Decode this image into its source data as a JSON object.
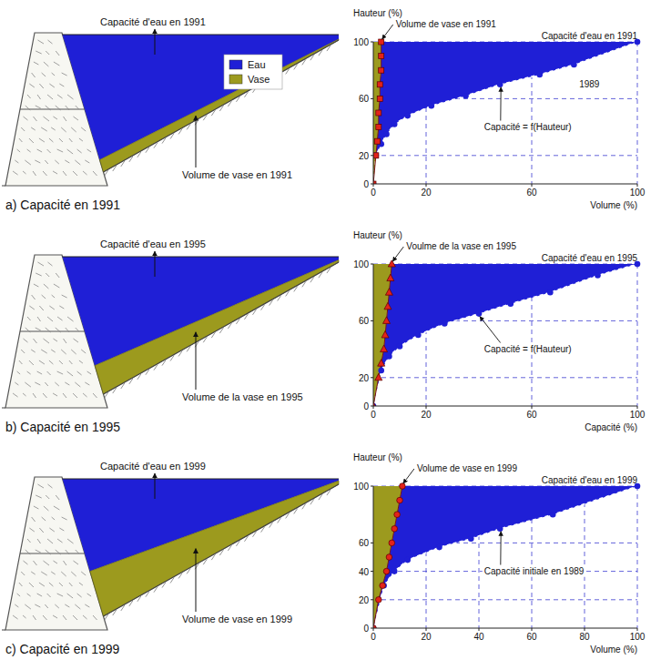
{
  "diagrams": [
    {
      "caption": "a) Capacité en 1991",
      "water_label": "Capacité d'eau en 1991",
      "silt_label": "Volume de vase en 1991",
      "legend": [
        {
          "label": "Eau",
          "color": "#1f1fd6"
        },
        {
          "label": "Vase",
          "color": "#9c9a1e"
        }
      ]
    },
    {
      "caption": "b) Capacité en 1995",
      "water_label": "Capacité d'eau en 1995",
      "silt_label": "Volume de la vase en 1995"
    },
    {
      "caption": "c) Capacité en 1999",
      "water_label": "Capacité d'eau en 1999",
      "silt_label": "Volume de vase en 1999"
    }
  ],
  "chart_data": [
    {
      "type": "line",
      "y_label": "Hauteur (%)",
      "x_label": "Volume (%)",
      "annotations": [
        "Capacité d'eau en 1991",
        "1989"
      ],
      "xlim": [
        0,
        100
      ],
      "ylim": [
        0,
        100
      ],
      "xticks": [
        0,
        20,
        60,
        100
      ],
      "yticks": [
        0,
        20,
        60,
        100
      ],
      "grid": true,
      "series": [
        {
          "name": "Capacité = f(Hauteur)",
          "color": "#1f1fd6",
          "marker": "circle",
          "line_style": "dashed",
          "x": [
            0,
            1,
            3,
            5,
            8,
            13,
            22,
            35,
            48,
            63,
            76,
            100
          ],
          "values": [
            0,
            20,
            28,
            35,
            42,
            48,
            55,
            62,
            70,
            77,
            84,
            100
          ]
        },
        {
          "name": "Volume de vase en 1991",
          "color": "#e2231a",
          "marker": "square",
          "line_style": "solid",
          "x": [
            0,
            1,
            1.5,
            2,
            2,
            2.5,
            2.5,
            3,
            3,
            3
          ],
          "values": [
            0,
            20,
            30,
            40,
            50,
            60,
            70,
            80,
            90,
            100
          ]
        }
      ]
    },
    {
      "type": "line",
      "y_label": "Hauteur (%)",
      "x_label": "Capacité (%)",
      "annotations": [
        "Capacité d'eau en 1995"
      ],
      "xlim": [
        0,
        100
      ],
      "ylim": [
        0,
        100
      ],
      "xticks": [
        0,
        20,
        60,
        100
      ],
      "yticks": [
        0,
        20,
        60,
        100
      ],
      "grid": true,
      "series": [
        {
          "name": "Capacité = f(Hauteur)",
          "color": "#1f1fd6",
          "marker": "circle",
          "line_style": "dashed",
          "x": [
            0,
            3,
            6,
            10,
            17,
            27,
            40,
            52,
            67,
            85,
            100
          ],
          "values": [
            0,
            25,
            35,
            42,
            50,
            58,
            65,
            72,
            80,
            92,
            100
          ]
        },
        {
          "name": "Voulme de la vase en 1995",
          "color": "#e2231a",
          "marker": "triangle",
          "line_style": "solid",
          "x": [
            0,
            2,
            3,
            4,
            4.5,
            5,
            5.5,
            6,
            6.5,
            7
          ],
          "values": [
            0,
            20,
            30,
            40,
            50,
            60,
            70,
            80,
            90,
            100
          ]
        }
      ]
    },
    {
      "type": "line",
      "y_label": "Hauteur (%)",
      "x_label": "Volume (%)",
      "annotations": [
        "Capacité d'eau en 1999"
      ],
      "xlim": [
        0,
        100
      ],
      "ylim": [
        0,
        100
      ],
      "xticks": [
        0,
        20,
        40,
        60,
        80,
        100
      ],
      "yticks": [
        0,
        20,
        40,
        60,
        100
      ],
      "grid": true,
      "series": [
        {
          "name": "Capacité initiale en 1989",
          "color": "#1f1fd6",
          "marker": "circle",
          "line_style": "dashed",
          "x": [
            0,
            4,
            8,
            13,
            25,
            37,
            48,
            68,
            100
          ],
          "values": [
            0,
            30,
            40,
            48,
            57,
            63,
            70,
            80,
            100
          ]
        },
        {
          "name": "Volume de vase en 1999",
          "color": "#e2231a",
          "marker": "circle",
          "line_style": "solid",
          "x": [
            0,
            2,
            3.5,
            5,
            6,
            7,
            8,
            9,
            10,
            11
          ],
          "values": [
            0,
            20,
            30,
            40,
            50,
            60,
            70,
            80,
            90,
            100
          ]
        }
      ]
    }
  ]
}
